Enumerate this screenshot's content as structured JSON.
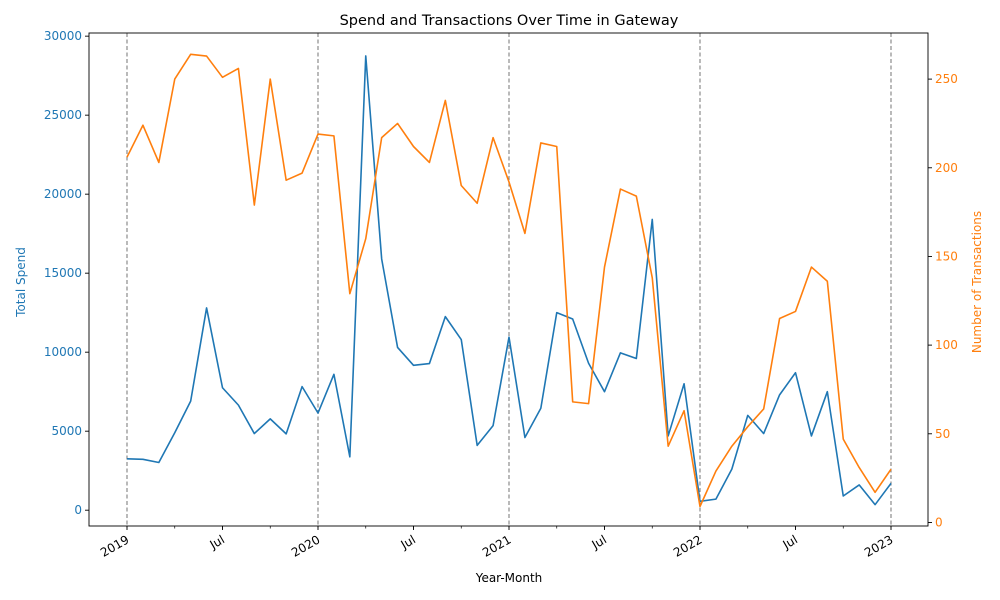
{
  "chart_data": {
    "type": "line",
    "title": "Spend and Transactions Over Time in Gateway",
    "xlabel": "Year-Month",
    "ylabel_left": "Total Spend",
    "ylabel_right": "Number of Transactions",
    "grid": false,
    "x": [
      "2019-01",
      "2019-02",
      "2019-03",
      "2019-04",
      "2019-05",
      "2019-06",
      "2019-07",
      "2019-08",
      "2019-09",
      "2019-10",
      "2019-11",
      "2019-12",
      "2020-01",
      "2020-02",
      "2020-03",
      "2020-04",
      "2020-05",
      "2020-06",
      "2020-07",
      "2020-08",
      "2020-09",
      "2020-10",
      "2020-11",
      "2020-12",
      "2021-01",
      "2021-02",
      "2021-03",
      "2021-04",
      "2021-05",
      "2021-06",
      "2021-07",
      "2021-08",
      "2021-09",
      "2021-10",
      "2021-11",
      "2021-12",
      "2022-01",
      "2022-02",
      "2022-03",
      "2022-04",
      "2022-05",
      "2022-06",
      "2022-07",
      "2022-08",
      "2022-09",
      "2022-10",
      "2022-11",
      "2022-12",
      "2023-01"
    ],
    "x_ticks": [
      {
        "date": "2019-01",
        "label": "2019"
      },
      {
        "date": "2019-07",
        "label": "Jul"
      },
      {
        "date": "2020-01",
        "label": "2020"
      },
      {
        "date": "2020-07",
        "label": "Jul"
      },
      {
        "date": "2021-01",
        "label": "2021"
      },
      {
        "date": "2021-07",
        "label": "Jul"
      },
      {
        "date": "2022-01",
        "label": "2022"
      },
      {
        "date": "2022-07",
        "label": "Jul"
      },
      {
        "date": "2023-01",
        "label": "2023"
      }
    ],
    "year_lines": [
      "2019-01",
      "2020-01",
      "2021-01",
      "2022-01",
      "2023-01"
    ],
    "ylim_left": [
      -1000,
      30200
    ],
    "yticks_left": [
      0,
      5000,
      10000,
      15000,
      20000,
      25000,
      30000
    ],
    "ylim_right": [
      -2,
      276
    ],
    "yticks_right": [
      0,
      50,
      100,
      150,
      200,
      250
    ],
    "series": [
      {
        "name": "Total Spend",
        "axis": "left",
        "color": "#1f77b4",
        "values": [
          3250,
          3220,
          3020,
          4900,
          6900,
          12800,
          7750,
          6650,
          4850,
          5780,
          4830,
          7820,
          6150,
          8600,
          3380,
          28750,
          15900,
          10300,
          9170,
          9280,
          12250,
          10800,
          4100,
          5350,
          10950,
          4600,
          6450,
          12500,
          12100,
          9300,
          7500,
          9960,
          9600,
          18400,
          4700,
          8000,
          560,
          700,
          2600,
          6000,
          4850,
          7300,
          8700,
          4700,
          7500,
          900,
          1600,
          350,
          1700
        ]
      },
      {
        "name": "Number of Transactions",
        "axis": "right",
        "color": "#ff7f0e",
        "values": [
          206,
          224,
          203,
          250,
          264,
          263,
          251,
          256,
          179,
          250,
          193,
          197,
          219,
          218,
          129,
          160,
          217,
          225,
          212,
          203,
          238,
          190,
          180,
          217,
          192,
          163,
          214,
          212,
          68,
          67,
          144,
          188,
          184,
          138,
          43,
          63,
          9,
          29,
          43,
          54,
          64,
          115,
          119,
          144,
          136,
          47,
          31,
          17,
          30
        ]
      }
    ]
  }
}
